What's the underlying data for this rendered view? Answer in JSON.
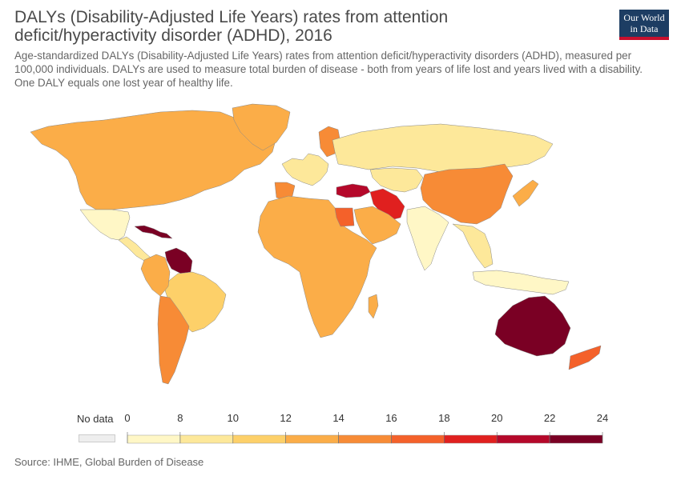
{
  "header": {
    "title": "DALYs (Disability-Adjusted Life Years) rates from attention deficit/hyperactivity disorder (ADHD), 2016",
    "subtitle": "Age-standardized DALYs (Disability-Adjusted Life Years) rates from attention deficit/hyperactivity disorders (ADHD), measured per 100,000 individuals. DALYs are used to measure total burden of disease - both from years of life lost and years lived with a disability. One DALY equals one lost year of healthy life.",
    "logo_line1": "Our World",
    "logo_line2": "in Data"
  },
  "legend": {
    "nodata_label": "No data",
    "nodata_color": "#eeeeee",
    "ticks": [
      "0",
      "8",
      "10",
      "12",
      "14",
      "16",
      "18",
      "20",
      "22",
      "24"
    ],
    "bins": [
      {
        "from": 0,
        "to": 8,
        "color": "#fff7c6"
      },
      {
        "from": 8,
        "to": 10,
        "color": "#fde89a"
      },
      {
        "from": 10,
        "to": 12,
        "color": "#fdd069"
      },
      {
        "from": 12,
        "to": 14,
        "color": "#fbad48"
      },
      {
        "from": 14,
        "to": 16,
        "color": "#f78b36"
      },
      {
        "from": 16,
        "to": 18,
        "color": "#f4612a"
      },
      {
        "from": 18,
        "to": 20,
        "color": "#e0201f"
      },
      {
        "from": 20,
        "to": 22,
        "color": "#b5082a"
      },
      {
        "from": 22,
        "to": 24,
        "color": "#7a0024"
      }
    ]
  },
  "regions": [
    {
      "name": "North America",
      "value": 13
    },
    {
      "name": "Greenland",
      "value": 13
    },
    {
      "name": "Mexico",
      "value": 7
    },
    {
      "name": "Central America",
      "value": 8
    },
    {
      "name": "Caribbean",
      "value": 22
    },
    {
      "name": "Venezuela",
      "value": 22
    },
    {
      "name": "Brazil",
      "value": 10
    },
    {
      "name": "Colombia and Peru",
      "value": 12
    },
    {
      "name": "Argentina and Chile",
      "value": 15
    },
    {
      "name": "Western Europe",
      "value": 9
    },
    {
      "name": "Spain",
      "value": 15
    },
    {
      "name": "Scandinavia",
      "value": 15
    },
    {
      "name": "Russia",
      "value": 8
    },
    {
      "name": "Central Asia",
      "value": 9
    },
    {
      "name": "Turkey",
      "value": 21
    },
    {
      "name": "Iran",
      "value": 19
    },
    {
      "name": "Africa",
      "value": 13
    },
    {
      "name": "Egypt",
      "value": 16
    },
    {
      "name": "Arabian Peninsula",
      "value": 12
    },
    {
      "name": "China",
      "value": 15
    },
    {
      "name": "India",
      "value": 7
    },
    {
      "name": "Southeast Asia",
      "value": 8
    },
    {
      "name": "Indonesia",
      "value": 7
    },
    {
      "name": "Japan",
      "value": 13
    },
    {
      "name": "Australia",
      "value": 23
    },
    {
      "name": "New Zealand",
      "value": 17
    },
    {
      "name": "Madagascar",
      "value": 13
    }
  ],
  "source": "Source: IHME, Global Burden of Disease"
}
